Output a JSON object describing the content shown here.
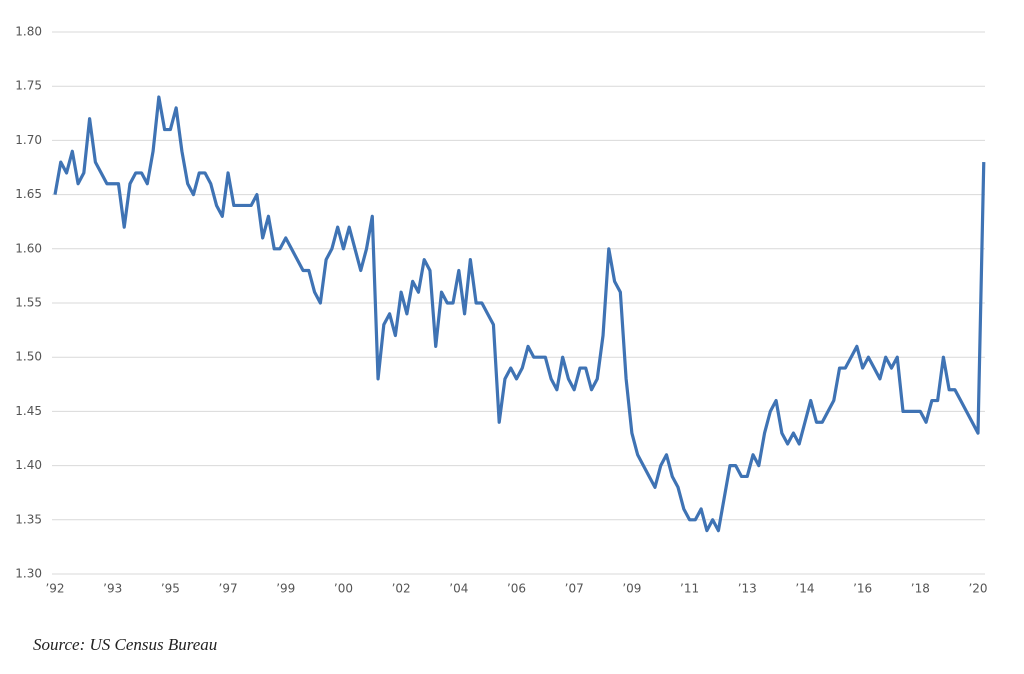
{
  "chart_data": {
    "type": "line",
    "source": "Source: US Census Bureau",
    "categories": [
      "’92",
      null,
      null,
      null,
      null,
      null,
      null,
      null,
      null,
      null,
      "’93",
      null,
      null,
      null,
      null,
      null,
      null,
      null,
      null,
      null,
      "’95",
      null,
      null,
      null,
      null,
      null,
      null,
      null,
      null,
      null,
      "’97",
      null,
      null,
      null,
      null,
      null,
      null,
      null,
      null,
      null,
      "’99",
      null,
      null,
      null,
      null,
      null,
      null,
      null,
      null,
      null,
      "’00",
      null,
      null,
      null,
      null,
      null,
      null,
      null,
      null,
      null,
      "’02",
      null,
      null,
      null,
      null,
      null,
      null,
      null,
      null,
      null,
      "’04",
      null,
      null,
      null,
      null,
      null,
      null,
      null,
      null,
      null,
      "’06",
      null,
      null,
      null,
      null,
      null,
      null,
      null,
      null,
      null,
      "’07",
      null,
      null,
      null,
      null,
      null,
      null,
      null,
      null,
      null,
      "’09",
      null,
      null,
      null,
      null,
      null,
      null,
      null,
      null,
      null,
      "’11",
      null,
      null,
      null,
      null,
      null,
      null,
      null,
      null,
      null,
      "’13",
      null,
      null,
      null,
      null,
      null,
      null,
      null,
      null,
      null,
      "’14",
      null,
      null,
      null,
      null,
      null,
      null,
      null,
      null,
      null,
      "’16",
      null,
      null,
      null,
      null,
      null,
      null,
      null,
      null,
      null,
      "’18",
      null,
      null,
      null,
      null,
      null,
      null,
      null,
      null,
      null,
      "’20",
      null
    ],
    "series": [
      {
        "color": "#3f73b4",
        "values": [
          1.65,
          1.68,
          1.67,
          1.69,
          1.66,
          1.67,
          1.72,
          1.68,
          1.67,
          1.66,
          1.66,
          1.66,
          1.62,
          1.66,
          1.67,
          1.67,
          1.66,
          1.69,
          1.74,
          1.71,
          1.71,
          1.73,
          1.69,
          1.66,
          1.65,
          1.67,
          1.67,
          1.66,
          1.64,
          1.63,
          1.67,
          1.64,
          1.64,
          1.64,
          1.64,
          1.65,
          1.61,
          1.63,
          1.6,
          1.6,
          1.61,
          1.6,
          1.59,
          1.58,
          1.58,
          1.56,
          1.55,
          1.59,
          1.6,
          1.62,
          1.6,
          1.62,
          1.6,
          1.58,
          1.6,
          1.63,
          1.48,
          1.53,
          1.54,
          1.52,
          1.56,
          1.54,
          1.57,
          1.56,
          1.59,
          1.58,
          1.51,
          1.56,
          1.55,
          1.55,
          1.58,
          1.54,
          1.59,
          1.55,
          1.55,
          1.54,
          1.53,
          1.44,
          1.48,
          1.49,
          1.48,
          1.49,
          1.51,
          1.5,
          1.5,
          1.5,
          1.48,
          1.47,
          1.5,
          1.48,
          1.47,
          1.49,
          1.49,
          1.47,
          1.48,
          1.52,
          1.6,
          1.57,
          1.56,
          1.48,
          1.43,
          1.41,
          1.4,
          1.39,
          1.38,
          1.4,
          1.41,
          1.39,
          1.38,
          1.36,
          1.35,
          1.35,
          1.36,
          1.34,
          1.35,
          1.34,
          1.37,
          1.4,
          1.4,
          1.39,
          1.39,
          1.41,
          1.4,
          1.43,
          1.45,
          1.46,
          1.43,
          1.42,
          1.43,
          1.42,
          1.44,
          1.46,
          1.44,
          1.44,
          1.45,
          1.46,
          1.49,
          1.49,
          1.5,
          1.51,
          1.49,
          1.5,
          1.49,
          1.48,
          1.5,
          1.49,
          1.5,
          1.45,
          1.45,
          1.45,
          1.45,
          1.44,
          1.46,
          1.46,
          1.5,
          1.47,
          1.47,
          1.46,
          1.45,
          1.44,
          1.43,
          1.68
        ]
      }
    ],
    "ylim": [
      1.3,
      1.8
    ],
    "yticks": [
      {
        "value": 1.3,
        "label": "1.30"
      },
      {
        "value": 1.35,
        "label": "1.35"
      },
      {
        "value": 1.4,
        "label": "1.40"
      },
      {
        "value": 1.45,
        "label": "1.45"
      },
      {
        "value": 1.5,
        "label": "1.50"
      },
      {
        "value": 1.55,
        "label": "1.55"
      },
      {
        "value": 1.6,
        "label": "1.60"
      },
      {
        "value": 1.65,
        "label": "1.65"
      },
      {
        "value": 1.7,
        "label": "1.70"
      },
      {
        "value": 1.75,
        "label": "1.75"
      },
      {
        "value": 1.8,
        "label": "1.80"
      }
    ],
    "grid": true
  }
}
